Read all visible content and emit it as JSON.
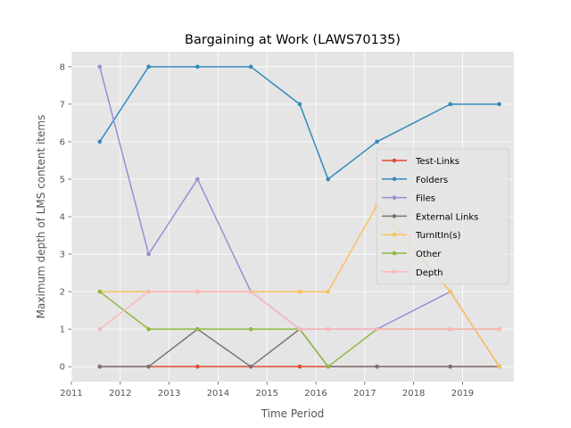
{
  "chart_data": {
    "type": "line",
    "title": "Bargaining at Work (LAWS70135)",
    "xlabel": "Time Period",
    "ylabel": "Maximum depth of LMS content items",
    "xlim": [
      2011,
      2020.05
    ],
    "ylim": [
      -0.4,
      8.4
    ],
    "xticks": [
      2011,
      2012,
      2013,
      2014,
      2015,
      2016,
      2017,
      2018,
      2019
    ],
    "yticks": [
      0,
      1,
      2,
      3,
      4,
      5,
      6,
      7,
      8
    ],
    "grid": true,
    "legend_position": "right",
    "x": [
      2011.58,
      2012.58,
      2013.58,
      2014.67,
      2015.67,
      2016.25,
      2017.25,
      2018.75,
      2019.75
    ],
    "series": [
      {
        "name": "Test-Links",
        "color": "#e24a33",
        "values": [
          0,
          0,
          0,
          0,
          0,
          0,
          0,
          0,
          0
        ]
      },
      {
        "name": "Folders",
        "color": "#348abd",
        "values": [
          6,
          8,
          8,
          8,
          7,
          5,
          6,
          7,
          7
        ]
      },
      {
        "name": "Files",
        "color": "#988ed5",
        "values": [
          8,
          3,
          5,
          2,
          1,
          1,
          1,
          2,
          0
        ]
      },
      {
        "name": "External Links",
        "color": "#777777",
        "values": [
          0,
          0,
          1,
          0,
          1,
          0,
          0,
          0,
          0
        ]
      },
      {
        "name": "TurnItIn(s)",
        "color": "#fbc15e",
        "values": [
          2,
          2,
          2,
          2,
          2,
          2,
          4.3,
          2,
          0
        ]
      },
      {
        "name": "Other",
        "color": "#8eba42",
        "values": [
          2,
          1,
          1,
          1,
          1,
          0,
          1,
          1,
          1
        ]
      },
      {
        "name": "Depth",
        "color": "#ffb5b8",
        "values": [
          1,
          2,
          2,
          2,
          1,
          1,
          1,
          1,
          1
        ]
      }
    ]
  }
}
